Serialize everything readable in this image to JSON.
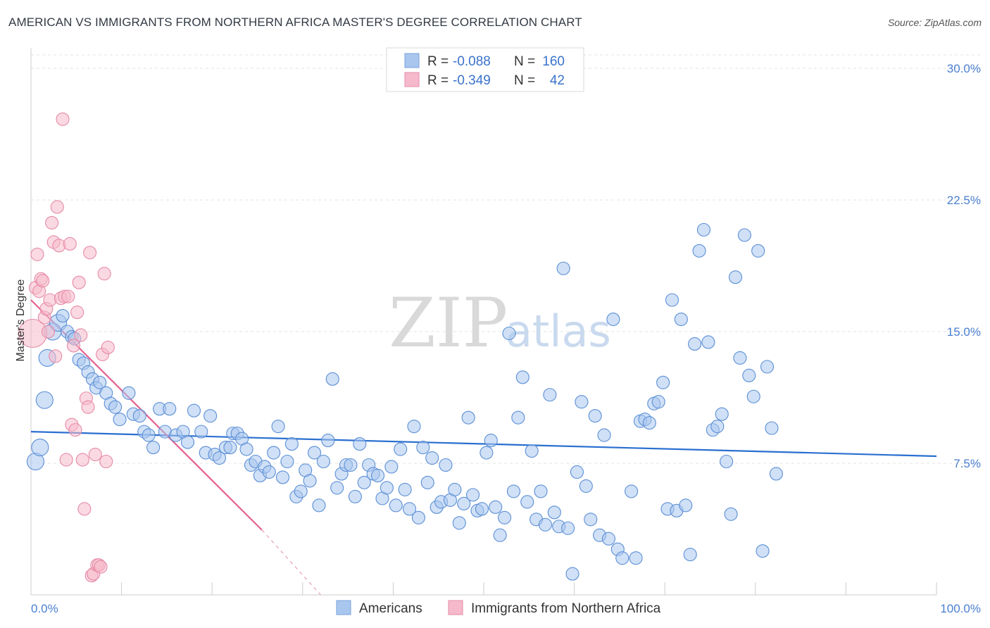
{
  "title": "AMERICAN VS IMMIGRANTS FROM NORTHERN AFRICA MASTER'S DEGREE CORRELATION CHART",
  "source": "Source: ZipAtlas.com",
  "watermark": {
    "zip": "ZIP",
    "atlas": "atlas"
  },
  "legend": {
    "rows": [
      {
        "r_label": "R =",
        "r_value": "-0.088",
        "n_label": "N =",
        "n_value": "160",
        "color": "#a9c6ef",
        "stroke": "#7aa3db"
      },
      {
        "r_label": "R =",
        "r_value": "-0.349",
        "n_label": "N =",
        "n_value": "42",
        "color": "#f5b9cb",
        "stroke": "#e68aa7"
      }
    ]
  },
  "bottom_legend": [
    {
      "label": "Americans",
      "color": "#a9c6ef",
      "stroke": "#7aa3db"
    },
    {
      "label": "Immigrants from Northern Africa",
      "color": "#f5b9cb",
      "stroke": "#e68aa7"
    }
  ],
  "chart_data": {
    "type": "scatter",
    "title": "AMERICAN VS IMMIGRANTS FROM NORTHERN AFRICA MASTER'S DEGREE CORRELATION CHART",
    "xlabel": "",
    "ylabel": "Master's Degree",
    "xlim": [
      0,
      100
    ],
    "ylim": [
      0,
      30
    ],
    "x_ticks": [
      "0.0%",
      "100.0%"
    ],
    "y_ticks": [
      {
        "value": 7.5,
        "label": "7.5%"
      },
      {
        "value": 15.0,
        "label": "15.0%"
      },
      {
        "value": 22.5,
        "label": "22.5%"
      },
      {
        "value": 30.0,
        "label": "30.0%"
      }
    ],
    "grid": true,
    "legend_placement": "top-center",
    "series": [
      {
        "name": "Americans",
        "color": "#a9c6ef",
        "stroke": "#5b8fd6",
        "trend": {
          "x": [
            0,
            100
          ],
          "y": [
            9.3,
            7.9
          ],
          "color": "#2a6fd0"
        },
        "points": [
          [
            0.5,
            7.6
          ],
          [
            1.0,
            8.4
          ],
          [
            1.5,
            11.1
          ],
          [
            1.8,
            13.5
          ],
          [
            2.4,
            15.0
          ],
          [
            3.0,
            15.5
          ],
          [
            3.5,
            15.9
          ],
          [
            4.0,
            15.0
          ],
          [
            4.5,
            14.7
          ],
          [
            4.8,
            14.6
          ],
          [
            5.3,
            13.4
          ],
          [
            5.8,
            13.2
          ],
          [
            6.3,
            12.7
          ],
          [
            6.8,
            12.3
          ],
          [
            7.2,
            11.8
          ],
          [
            7.6,
            12.1
          ],
          [
            8.3,
            11.5
          ],
          [
            8.8,
            10.9
          ],
          [
            9.3,
            10.7
          ],
          [
            9.8,
            10.0
          ],
          [
            10.8,
            11.5
          ],
          [
            11.3,
            10.3
          ],
          [
            12.0,
            10.2
          ],
          [
            12.5,
            9.3
          ],
          [
            13.0,
            9.1
          ],
          [
            13.5,
            8.4
          ],
          [
            14.2,
            10.6
          ],
          [
            14.8,
            9.3
          ],
          [
            15.3,
            10.6
          ],
          [
            16.0,
            9.1
          ],
          [
            16.8,
            9.3
          ],
          [
            17.3,
            8.7
          ],
          [
            18.0,
            10.5
          ],
          [
            18.8,
            9.3
          ],
          [
            19.3,
            8.1
          ],
          [
            19.8,
            10.2
          ],
          [
            20.3,
            8.0
          ],
          [
            20.8,
            7.8
          ],
          [
            21.5,
            8.4
          ],
          [
            22.0,
            8.4
          ],
          [
            22.3,
            9.2
          ],
          [
            22.8,
            9.2
          ],
          [
            23.3,
            8.9
          ],
          [
            23.8,
            8.3
          ],
          [
            24.3,
            7.4
          ],
          [
            24.8,
            7.6
          ],
          [
            25.3,
            6.8
          ],
          [
            25.8,
            7.3
          ],
          [
            26.3,
            7.0
          ],
          [
            26.8,
            8.1
          ],
          [
            27.3,
            9.6
          ],
          [
            27.8,
            6.7
          ],
          [
            28.3,
            7.6
          ],
          [
            28.8,
            8.6
          ],
          [
            29.3,
            5.6
          ],
          [
            29.8,
            5.9
          ],
          [
            30.3,
            7.1
          ],
          [
            30.8,
            6.5
          ],
          [
            31.3,
            8.1
          ],
          [
            31.8,
            5.1
          ],
          [
            32.3,
            7.6
          ],
          [
            32.8,
            8.8
          ],
          [
            33.3,
            12.3
          ],
          [
            33.8,
            6.1
          ],
          [
            34.3,
            6.9
          ],
          [
            34.8,
            7.4
          ],
          [
            35.3,
            7.4
          ],
          [
            35.8,
            5.6
          ],
          [
            36.3,
            8.6
          ],
          [
            36.8,
            6.4
          ],
          [
            37.3,
            7.4
          ],
          [
            37.8,
            6.9
          ],
          [
            38.3,
            6.8
          ],
          [
            38.8,
            5.5
          ],
          [
            39.3,
            6.1
          ],
          [
            39.8,
            7.3
          ],
          [
            40.3,
            5.1
          ],
          [
            40.8,
            8.3
          ],
          [
            41.3,
            6.0
          ],
          [
            41.8,
            4.9
          ],
          [
            42.3,
            9.6
          ],
          [
            42.8,
            4.4
          ],
          [
            43.3,
            8.4
          ],
          [
            43.8,
            6.4
          ],
          [
            44.3,
            7.8
          ],
          [
            44.8,
            5.0
          ],
          [
            45.3,
            5.3
          ],
          [
            45.8,
            7.4
          ],
          [
            46.3,
            5.4
          ],
          [
            46.8,
            6.0
          ],
          [
            47.3,
            4.1
          ],
          [
            47.8,
            5.2
          ],
          [
            48.3,
            10.1
          ],
          [
            48.8,
            5.7
          ],
          [
            49.3,
            4.8
          ],
          [
            49.8,
            4.9
          ],
          [
            50.3,
            8.1
          ],
          [
            50.8,
            8.8
          ],
          [
            51.3,
            5.0
          ],
          [
            51.8,
            3.4
          ],
          [
            52.3,
            4.4
          ],
          [
            52.8,
            14.9
          ],
          [
            53.3,
            5.9
          ],
          [
            53.8,
            10.1
          ],
          [
            54.3,
            12.4
          ],
          [
            54.8,
            5.3
          ],
          [
            55.3,
            8.2
          ],
          [
            55.8,
            4.3
          ],
          [
            56.3,
            5.9
          ],
          [
            56.8,
            4.0
          ],
          [
            57.3,
            11.4
          ],
          [
            57.8,
            4.7
          ],
          [
            58.3,
            3.9
          ],
          [
            58.8,
            18.6
          ],
          [
            59.3,
            3.8
          ],
          [
            59.8,
            1.2
          ],
          [
            60.3,
            7.0
          ],
          [
            60.8,
            11.0
          ],
          [
            61.3,
            6.2
          ],
          [
            61.8,
            4.3
          ],
          [
            62.3,
            10.2
          ],
          [
            62.8,
            3.4
          ],
          [
            63.3,
            9.1
          ],
          [
            63.8,
            3.2
          ],
          [
            64.3,
            15.7
          ],
          [
            64.8,
            2.6
          ],
          [
            65.3,
            2.1
          ],
          [
            66.3,
            5.9
          ],
          [
            66.8,
            2.1
          ],
          [
            67.3,
            9.9
          ],
          [
            67.8,
            10.0
          ],
          [
            68.3,
            9.8
          ],
          [
            68.8,
            10.9
          ],
          [
            69.3,
            11.0
          ],
          [
            69.8,
            12.1
          ],
          [
            70.3,
            4.9
          ],
          [
            70.8,
            16.8
          ],
          [
            71.3,
            4.8
          ],
          [
            71.8,
            15.7
          ],
          [
            72.3,
            5.1
          ],
          [
            72.8,
            2.3
          ],
          [
            73.3,
            14.3
          ],
          [
            73.8,
            19.6
          ],
          [
            74.3,
            20.8
          ],
          [
            74.8,
            14.4
          ],
          [
            75.3,
            9.4
          ],
          [
            75.8,
            9.6
          ],
          [
            76.3,
            10.3
          ],
          [
            76.8,
            7.6
          ],
          [
            77.3,
            4.6
          ],
          [
            77.8,
            18.1
          ],
          [
            78.3,
            13.5
          ],
          [
            78.8,
            20.5
          ],
          [
            79.3,
            12.5
          ],
          [
            79.8,
            11.3
          ],
          [
            80.3,
            19.6
          ],
          [
            80.8,
            2.5
          ],
          [
            81.3,
            13.0
          ],
          [
            81.8,
            9.5
          ],
          [
            82.3,
            6.9
          ]
        ]
      },
      {
        "name": "Immigrants from Northern Africa",
        "color": "#f5b9cb",
        "stroke": "#e68aa7",
        "trend": {
          "x": [
            0,
            25.5
          ],
          "y": [
            16.8,
            3.7
          ],
          "color": "#e4608f",
          "dashed_to": [
            32,
            0
          ]
        },
        "points": [
          [
            0.2,
            14.9
          ],
          [
            0.5,
            17.5
          ],
          [
            0.7,
            19.4
          ],
          [
            0.9,
            17.3
          ],
          [
            1.1,
            18.0
          ],
          [
            1.3,
            17.9
          ],
          [
            1.5,
            15.8
          ],
          [
            1.7,
            16.3
          ],
          [
            1.9,
            15.0
          ],
          [
            2.1,
            16.8
          ],
          [
            2.3,
            21.2
          ],
          [
            2.5,
            20.1
          ],
          [
            2.7,
            13.6
          ],
          [
            2.9,
            22.1
          ],
          [
            3.1,
            19.9
          ],
          [
            3.3,
            16.9
          ],
          [
            3.5,
            27.1
          ],
          [
            3.7,
            17.0
          ],
          [
            3.9,
            7.7
          ],
          [
            4.1,
            17.0
          ],
          [
            4.3,
            20.0
          ],
          [
            4.5,
            9.7
          ],
          [
            4.7,
            14.2
          ],
          [
            4.9,
            9.4
          ],
          [
            5.1,
            16.1
          ],
          [
            5.3,
            17.8
          ],
          [
            5.5,
            14.8
          ],
          [
            5.7,
            7.7
          ],
          [
            5.9,
            4.9
          ],
          [
            6.1,
            11.2
          ],
          [
            6.3,
            10.7
          ],
          [
            6.5,
            19.5
          ],
          [
            6.7,
            1.1
          ],
          [
            6.9,
            1.2
          ],
          [
            7.1,
            8.0
          ],
          [
            7.3,
            1.7
          ],
          [
            7.5,
            1.7
          ],
          [
            7.7,
            1.6
          ],
          [
            7.9,
            13.7
          ],
          [
            8.1,
            18.3
          ],
          [
            8.3,
            7.6
          ],
          [
            8.5,
            14.1
          ]
        ]
      }
    ]
  }
}
